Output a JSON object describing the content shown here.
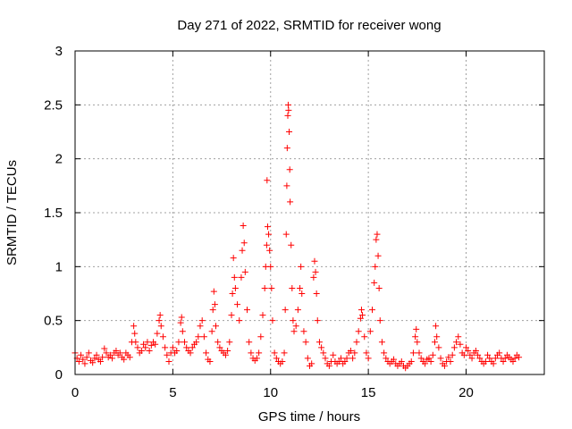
{
  "chart_data": {
    "type": "scatter",
    "title": "Day 271 of 2022, SRMTID for receiver wong",
    "xlabel": "GPS time / hours",
    "ylabel": "SRMTID / TECUs",
    "xlim": [
      0,
      24
    ],
    "ylim": [
      0,
      3
    ],
    "xticks": [
      0,
      5,
      10,
      15,
      20
    ],
    "xtick_labels": [
      "0",
      "5",
      "10",
      "15",
      "20"
    ],
    "yticks": [
      0,
      0.5,
      1,
      1.5,
      2,
      2.5,
      3
    ],
    "ytick_labels": [
      "0",
      "0.5",
      "1",
      "1.5",
      "2",
      "2.5",
      "3"
    ],
    "grid": true,
    "marker": "+",
    "series": [
      {
        "name": "SRMTID",
        "color": "#ff0000",
        "points": [
          [
            0.0,
            0.2
          ],
          [
            0.1,
            0.15
          ],
          [
            0.2,
            0.12
          ],
          [
            0.3,
            0.18
          ],
          [
            0.4,
            0.14
          ],
          [
            0.5,
            0.1
          ],
          [
            0.6,
            0.16
          ],
          [
            0.7,
            0.2
          ],
          [
            0.8,
            0.13
          ],
          [
            0.9,
            0.11
          ],
          [
            1.0,
            0.15
          ],
          [
            1.1,
            0.18
          ],
          [
            1.2,
            0.14
          ],
          [
            1.3,
            0.12
          ],
          [
            1.4,
            0.16
          ],
          [
            1.5,
            0.24
          ],
          [
            1.6,
            0.2
          ],
          [
            1.7,
            0.16
          ],
          [
            1.8,
            0.18
          ],
          [
            1.9,
            0.15
          ],
          [
            2.0,
            0.2
          ],
          [
            2.1,
            0.22
          ],
          [
            2.2,
            0.18
          ],
          [
            2.3,
            0.2
          ],
          [
            2.4,
            0.16
          ],
          [
            2.5,
            0.14
          ],
          [
            2.6,
            0.2
          ],
          [
            2.7,
            0.18
          ],
          [
            2.8,
            0.16
          ],
          [
            2.9,
            0.3
          ],
          [
            3.0,
            0.45
          ],
          [
            3.05,
            0.38
          ],
          [
            3.1,
            0.3
          ],
          [
            3.2,
            0.25
          ],
          [
            3.3,
            0.2
          ],
          [
            3.4,
            0.22
          ],
          [
            3.5,
            0.28
          ],
          [
            3.6,
            0.25
          ],
          [
            3.7,
            0.3
          ],
          [
            3.8,
            0.22
          ],
          [
            3.9,
            0.27
          ],
          [
            4.0,
            0.3
          ],
          [
            4.1,
            0.28
          ],
          [
            4.2,
            0.38
          ],
          [
            4.3,
            0.5
          ],
          [
            4.35,
            0.55
          ],
          [
            4.4,
            0.45
          ],
          [
            4.5,
            0.35
          ],
          [
            4.6,
            0.25
          ],
          [
            4.7,
            0.18
          ],
          [
            4.8,
            0.12
          ],
          [
            4.9,
            0.2
          ],
          [
            5.0,
            0.25
          ],
          [
            5.1,
            0.2
          ],
          [
            5.2,
            0.22
          ],
          [
            5.3,
            0.3
          ],
          [
            5.4,
            0.48
          ],
          [
            5.45,
            0.53
          ],
          [
            5.5,
            0.4
          ],
          [
            5.6,
            0.3
          ],
          [
            5.7,
            0.25
          ],
          [
            5.8,
            0.22
          ],
          [
            5.9,
            0.2
          ],
          [
            6.0,
            0.25
          ],
          [
            6.1,
            0.28
          ],
          [
            6.2,
            0.3
          ],
          [
            6.3,
            0.35
          ],
          [
            6.4,
            0.45
          ],
          [
            6.5,
            0.5
          ],
          [
            6.6,
            0.35
          ],
          [
            6.7,
            0.2
          ],
          [
            6.8,
            0.14
          ],
          [
            6.9,
            0.12
          ],
          [
            7.0,
            0.4
          ],
          [
            7.05,
            0.6
          ],
          [
            7.1,
            0.77
          ],
          [
            7.15,
            0.65
          ],
          [
            7.2,
            0.45
          ],
          [
            7.3,
            0.3
          ],
          [
            7.4,
            0.25
          ],
          [
            7.5,
            0.22
          ],
          [
            7.6,
            0.2
          ],
          [
            7.7,
            0.18
          ],
          [
            7.8,
            0.22
          ],
          [
            7.9,
            0.3
          ],
          [
            8.0,
            0.55
          ],
          [
            8.05,
            0.75
          ],
          [
            8.1,
            1.08
          ],
          [
            8.15,
            0.9
          ],
          [
            8.2,
            0.8
          ],
          [
            8.3,
            0.65
          ],
          [
            8.4,
            0.5
          ],
          [
            8.5,
            0.9
          ],
          [
            8.55,
            1.15
          ],
          [
            8.6,
            1.38
          ],
          [
            8.65,
            1.22
          ],
          [
            8.7,
            0.95
          ],
          [
            8.8,
            0.6
          ],
          [
            8.9,
            0.3
          ],
          [
            9.0,
            0.2
          ],
          [
            9.1,
            0.15
          ],
          [
            9.2,
            0.13
          ],
          [
            9.3,
            0.15
          ],
          [
            9.4,
            0.2
          ],
          [
            9.5,
            0.35
          ],
          [
            9.6,
            0.55
          ],
          [
            9.7,
            0.8
          ],
          [
            9.75,
            1.0
          ],
          [
            9.8,
            1.2
          ],
          [
            9.85,
            1.37
          ],
          [
            9.9,
            1.3
          ],
          [
            9.95,
            1.15
          ],
          [
            10.0,
            1.0
          ],
          [
            10.05,
            0.8
          ],
          [
            10.1,
            0.5
          ],
          [
            10.2,
            0.2
          ],
          [
            9.82,
            1.8
          ],
          [
            10.3,
            0.15
          ],
          [
            10.4,
            0.12
          ],
          [
            10.5,
            0.1
          ],
          [
            10.6,
            0.12
          ],
          [
            10.7,
            0.2
          ],
          [
            10.75,
            0.6
          ],
          [
            10.8,
            1.3
          ],
          [
            10.83,
            1.75
          ],
          [
            10.85,
            2.1
          ],
          [
            10.88,
            2.4
          ],
          [
            10.9,
            2.5
          ],
          [
            10.92,
            2.45
          ],
          [
            10.95,
            2.25
          ],
          [
            10.98,
            1.9
          ],
          [
            11.0,
            1.6
          ],
          [
            11.05,
            1.2
          ],
          [
            11.1,
            0.8
          ],
          [
            11.15,
            0.5
          ],
          [
            11.2,
            0.4
          ],
          [
            11.3,
            0.45
          ],
          [
            11.4,
            0.6
          ],
          [
            11.5,
            0.8
          ],
          [
            11.55,
            1.0
          ],
          [
            11.6,
            0.75
          ],
          [
            11.7,
            0.4
          ],
          [
            11.8,
            0.3
          ],
          [
            11.9,
            0.15
          ],
          [
            12.0,
            0.08
          ],
          [
            12.1,
            0.1
          ],
          [
            12.2,
            0.9
          ],
          [
            12.25,
            1.05
          ],
          [
            12.3,
            0.95
          ],
          [
            12.35,
            0.75
          ],
          [
            12.4,
            0.5
          ],
          [
            12.5,
            0.3
          ],
          [
            12.6,
            0.25
          ],
          [
            12.7,
            0.2
          ],
          [
            12.8,
            0.15
          ],
          [
            12.9,
            0.1
          ],
          [
            13.0,
            0.08
          ],
          [
            13.1,
            0.12
          ],
          [
            13.2,
            0.18
          ],
          [
            13.3,
            0.12
          ],
          [
            13.4,
            0.1
          ],
          [
            13.5,
            0.12
          ],
          [
            13.6,
            0.15
          ],
          [
            13.7,
            0.1
          ],
          [
            13.8,
            0.12
          ],
          [
            13.9,
            0.15
          ],
          [
            14.0,
            0.2
          ],
          [
            14.1,
            0.22
          ],
          [
            14.2,
            0.15
          ],
          [
            14.3,
            0.2
          ],
          [
            14.4,
            0.3
          ],
          [
            14.5,
            0.4
          ],
          [
            14.6,
            0.52
          ],
          [
            14.65,
            0.6
          ],
          [
            14.7,
            0.55
          ],
          [
            14.8,
            0.35
          ],
          [
            14.9,
            0.2
          ],
          [
            15.0,
            0.15
          ],
          [
            15.1,
            0.4
          ],
          [
            15.2,
            0.6
          ],
          [
            15.3,
            0.85
          ],
          [
            15.35,
            1.0
          ],
          [
            15.4,
            1.25
          ],
          [
            15.45,
            1.3
          ],
          [
            15.5,
            1.1
          ],
          [
            15.55,
            0.8
          ],
          [
            15.6,
            0.5
          ],
          [
            15.7,
            0.3
          ],
          [
            15.8,
            0.2
          ],
          [
            15.9,
            0.15
          ],
          [
            16.0,
            0.12
          ],
          [
            16.1,
            0.1
          ],
          [
            16.2,
            0.12
          ],
          [
            16.3,
            0.14
          ],
          [
            16.4,
            0.1
          ],
          [
            16.5,
            0.08
          ],
          [
            16.6,
            0.1
          ],
          [
            16.7,
            0.12
          ],
          [
            16.8,
            0.08
          ],
          [
            16.9,
            0.06
          ],
          [
            17.0,
            0.08
          ],
          [
            17.1,
            0.1
          ],
          [
            17.2,
            0.12
          ],
          [
            17.3,
            0.2
          ],
          [
            17.4,
            0.35
          ],
          [
            17.45,
            0.42
          ],
          [
            17.5,
            0.3
          ],
          [
            17.6,
            0.2
          ],
          [
            17.7,
            0.15
          ],
          [
            17.8,
            0.12
          ],
          [
            17.9,
            0.1
          ],
          [
            18.0,
            0.14
          ],
          [
            18.1,
            0.15
          ],
          [
            18.2,
            0.12
          ],
          [
            18.3,
            0.18
          ],
          [
            18.4,
            0.3
          ],
          [
            18.45,
            0.45
          ],
          [
            18.5,
            0.35
          ],
          [
            18.6,
            0.25
          ],
          [
            18.7,
            0.15
          ],
          [
            18.8,
            0.1
          ],
          [
            18.9,
            0.08
          ],
          [
            19.0,
            0.12
          ],
          [
            19.1,
            0.16
          ],
          [
            19.2,
            0.12
          ],
          [
            19.3,
            0.18
          ],
          [
            19.4,
            0.25
          ],
          [
            19.5,
            0.3
          ],
          [
            19.6,
            0.35
          ],
          [
            19.7,
            0.28
          ],
          [
            19.8,
            0.2
          ],
          [
            19.9,
            0.18
          ],
          [
            20.0,
            0.25
          ],
          [
            20.1,
            0.22
          ],
          [
            20.2,
            0.18
          ],
          [
            20.3,
            0.15
          ],
          [
            20.4,
            0.2
          ],
          [
            20.5,
            0.22
          ],
          [
            20.6,
            0.18
          ],
          [
            20.7,
            0.15
          ],
          [
            20.8,
            0.12
          ],
          [
            20.9,
            0.1
          ],
          [
            21.0,
            0.12
          ],
          [
            21.1,
            0.18
          ],
          [
            21.2,
            0.15
          ],
          [
            21.3,
            0.12
          ],
          [
            21.4,
            0.1
          ],
          [
            21.5,
            0.15
          ],
          [
            21.6,
            0.18
          ],
          [
            21.7,
            0.2
          ],
          [
            21.8,
            0.15
          ],
          [
            21.9,
            0.12
          ],
          [
            22.0,
            0.15
          ],
          [
            22.1,
            0.18
          ],
          [
            22.2,
            0.16
          ],
          [
            22.3,
            0.14
          ],
          [
            22.4,
            0.12
          ],
          [
            22.5,
            0.15
          ],
          [
            22.6,
            0.18
          ],
          [
            22.7,
            0.16
          ]
        ]
      }
    ]
  }
}
